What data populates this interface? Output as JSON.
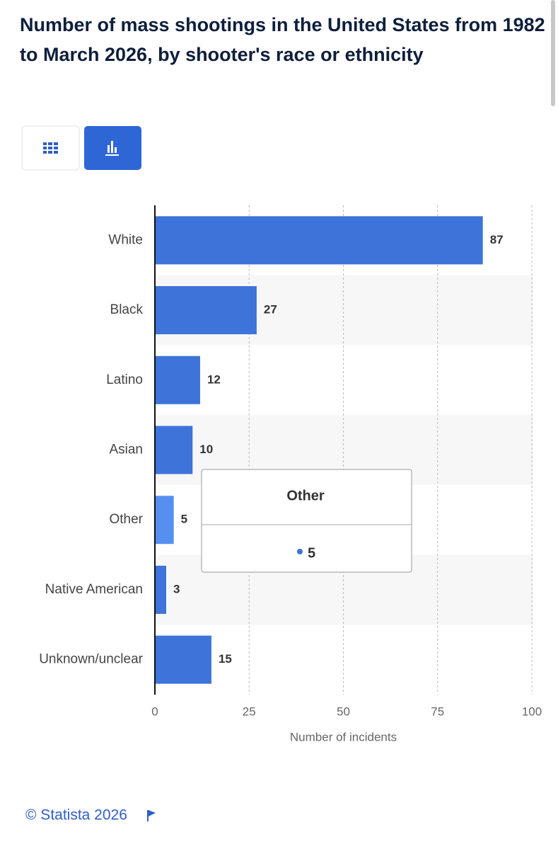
{
  "chart_data": {
    "type": "bar",
    "orientation": "horizontal",
    "title": "Number of mass shootings in the United States from 1982 to March 2026, by shooter's race or ethnicity",
    "categories": [
      "White",
      "Black",
      "Latino",
      "Asian",
      "Other",
      "Native American",
      "Unknown/unclear"
    ],
    "values": [
      87,
      27,
      12,
      10,
      5,
      3,
      15
    ],
    "colors": [
      "#3e74d9",
      "#3e74d9",
      "#3e74d9",
      "#3e74d9",
      "#5590f0",
      "#3e74d9",
      "#3e74d9"
    ],
    "xlim": [
      0,
      100
    ],
    "xticks": [
      0,
      25,
      50,
      75,
      100
    ],
    "grid": true,
    "xlabel": "Number of incidents",
    "tooltip_index": 4,
    "source": "© Statista 2026"
  }
}
